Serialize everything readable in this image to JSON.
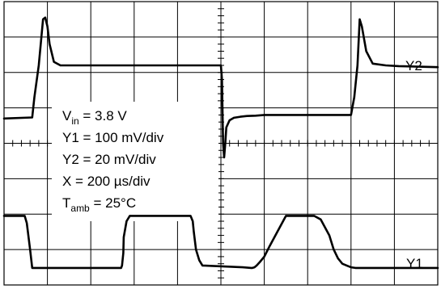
{
  "chart_data": {
    "type": "line",
    "title": "",
    "xlabel": "",
    "ylabel": "",
    "x_unit": "µs",
    "grid": true,
    "grid_divisions": {
      "x": 10,
      "y": 8
    },
    "xlim": [
      0,
      2000
    ],
    "ylim_div": [
      0,
      8
    ],
    "series": [
      {
        "name": "Y1",
        "unit": "div",
        "x": [
          0,
          95,
          105,
          120,
          130,
          540,
          544,
          550,
          552,
          565,
          580,
          860,
          870,
          875,
          885,
          900,
          915,
          1100,
          1140,
          1145,
          1155,
          1165,
          1180,
          1200,
          1225,
          1260,
          1300,
          1340,
          1380,
          1430,
          1460,
          1500,
          1520,
          1540,
          1560,
          1580,
          1600,
          1620,
          1640,
          1660,
          1680,
          1700,
          1720,
          1760,
          1800,
          1840,
          1900,
          1950,
          2000
        ],
        "values": [
          1.95,
          1.95,
          1.75,
          1.0,
          0.48,
          0.48,
          0.55,
          0.9,
          1.35,
          1.8,
          1.95,
          1.95,
          1.8,
          1.5,
          1.0,
          0.7,
          0.55,
          0.5,
          0.48,
          0.48,
          0.5,
          0.55,
          0.65,
          0.8,
          1.1,
          1.5,
          1.95,
          1.95,
          1.95,
          1.95,
          1.85,
          1.4,
          1.0,
          0.75,
          0.6,
          0.55,
          0.5,
          0.48,
          0.48,
          0.48,
          0.48,
          0.48,
          0.48,
          0.48,
          0.48,
          0.48,
          0.48,
          0.48,
          0.48
        ]
      },
      {
        "name": "Y2",
        "unit": "div",
        "x": [
          0,
          130,
          140,
          160,
          180,
          190,
          200,
          210,
          230,
          260,
          300,
          1000,
          1005,
          1010,
          1015,
          1020,
          1025,
          1040,
          1060,
          1090,
          1120,
          1160,
          1200,
          1600,
          1615,
          1630,
          1640,
          1650,
          1670,
          1700,
          1760,
          1820,
          2000
        ],
        "values": [
          4.7,
          4.73,
          5.3,
          6.2,
          7.5,
          7.55,
          7.3,
          6.8,
          6.3,
          6.2,
          6.2,
          6.2,
          5.8,
          4.0,
          3.6,
          4.0,
          4.45,
          4.65,
          4.72,
          4.75,
          4.77,
          4.78,
          4.8,
          4.8,
          5.3,
          6.2,
          7.5,
          7.3,
          6.6,
          6.25,
          6.2,
          6.18,
          6.15
        ]
      }
    ],
    "annotations": [
      {
        "text": "V",
        "sub": "in",
        "rest": " = 3.8 V"
      },
      {
        "text": "Y1 = 100 mV/div",
        "sub": "",
        "rest": ""
      },
      {
        "text": "Y2 = 20 mV/div",
        "sub": "",
        "rest": ""
      },
      {
        "text": "X = 200 µs/div",
        "sub": "",
        "rest": ""
      },
      {
        "text": "T",
        "sub": "amb",
        "rest": " = 25°C"
      }
    ]
  }
}
